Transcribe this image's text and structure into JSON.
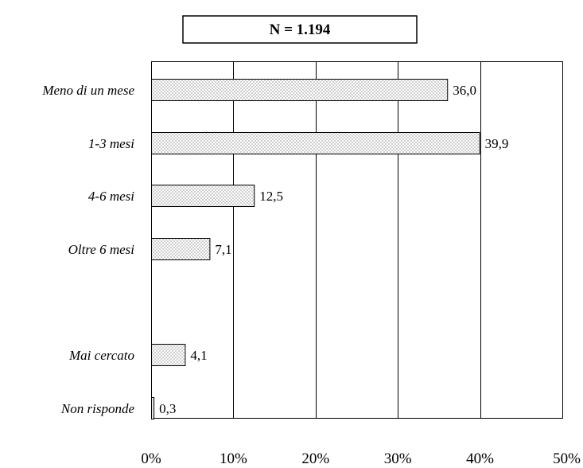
{
  "chart_data": {
    "type": "bar",
    "orientation": "horizontal",
    "title": "N = 1.194",
    "categories": [
      "Meno di un mese",
      "1-3 mesi",
      "4-6 mesi",
      "Oltre 6 mesi",
      "Mai cercato",
      "Non risponde"
    ],
    "values": [
      36.0,
      39.9,
      12.5,
      7.1,
      4.1,
      0.3
    ],
    "value_labels": [
      "36,0",
      "39,9",
      "12,5",
      "7,1",
      "4,1",
      "0,3"
    ],
    "xlim": [
      0,
      50
    ],
    "x_ticks": [
      0,
      10,
      20,
      30,
      40,
      50
    ],
    "x_tick_labels": [
      "0%",
      "10%",
      "20%",
      "30%",
      "40%",
      "50%"
    ],
    "xlabel": "",
    "ylabel": "",
    "grid": "vertical",
    "bar_fill": "dotted",
    "colors": {
      "bar_fill": "#ffffff",
      "bar_dots": "#555555",
      "axis": "#000000"
    }
  }
}
